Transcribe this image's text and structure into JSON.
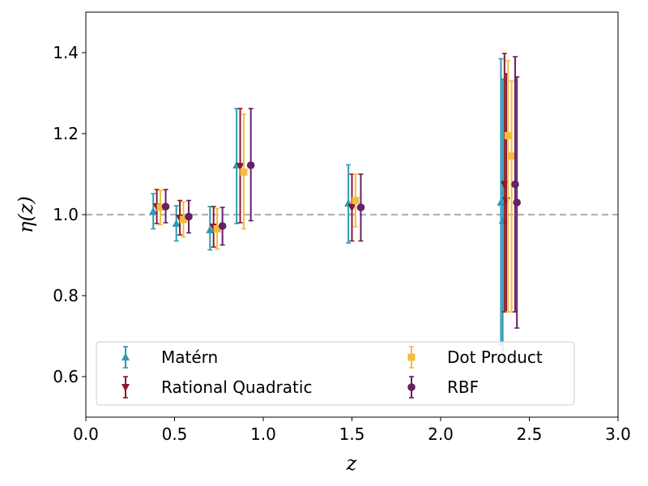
{
  "chart_data": {
    "type": "scatter",
    "title": "",
    "xlabel": "z",
    "ylabel": "η(z)",
    "xlim": [
      0.0,
      3.0
    ],
    "ylim": [
      0.5,
      1.5
    ],
    "xticks": [
      "0.0",
      "0.5",
      "1.0",
      "1.5",
      "2.0",
      "2.5",
      "3.0"
    ],
    "xtick_values": [
      0.0,
      0.5,
      1.0,
      1.5,
      2.0,
      2.5,
      3.0
    ],
    "yticks": [
      "0.6",
      "0.8",
      "1.0",
      "1.2",
      "1.4"
    ],
    "ytick_values": [
      0.6,
      0.8,
      1.0,
      1.2,
      1.4
    ],
    "reference_line": {
      "y": 1.0,
      "style": "dashed",
      "color": "#b3b3b3"
    },
    "legend_position": "lower-center",
    "series": [
      {
        "name": "Matérn",
        "color": "#2e9ab6",
        "marker": "triangle-up",
        "points": [
          {
            "x": 0.38,
            "y": 1.008,
            "lo": 0.965,
            "hi": 1.052
          },
          {
            "x": 0.51,
            "y": 0.978,
            "lo": 0.935,
            "hi": 1.022
          },
          {
            "x": 0.7,
            "y": 0.962,
            "lo": 0.913,
            "hi": 1.02
          },
          {
            "x": 0.85,
            "y": 1.122,
            "lo": 0.978,
            "hi": 1.262
          },
          {
            "x": 1.48,
            "y": 1.028,
            "lo": 0.93,
            "hi": 1.123
          },
          {
            "x": 2.34,
            "y": 1.03,
            "lo": 0.68,
            "hi": 1.385
          },
          {
            "x": 2.35,
            "y": 0.985,
            "lo": 0.64,
            "hi": 1.335
          }
        ]
      },
      {
        "name": "Rational Quadratic",
        "color": "#8b1a2b",
        "marker": "triangle-down",
        "points": [
          {
            "x": 0.4,
            "y": 1.02,
            "lo": 0.978,
            "hi": 1.062
          },
          {
            "x": 0.53,
            "y": 0.992,
            "lo": 0.95,
            "hi": 1.035
          },
          {
            "x": 0.72,
            "y": 0.97,
            "lo": 0.92,
            "hi": 1.02
          },
          {
            "x": 0.87,
            "y": 1.12,
            "lo": 0.98,
            "hi": 1.262
          },
          {
            "x": 1.5,
            "y": 1.018,
            "lo": 0.935,
            "hi": 1.1
          },
          {
            "x": 2.36,
            "y": 1.075,
            "lo": 0.76,
            "hi": 1.398
          },
          {
            "x": 2.37,
            "y": 1.035,
            "lo": 0.76,
            "hi": 1.348
          }
        ]
      },
      {
        "name": "Dot Product",
        "color": "#f2bd3d",
        "marker": "square",
        "points": [
          {
            "x": 0.42,
            "y": 1.018,
            "lo": 0.975,
            "hi": 1.06
          },
          {
            "x": 0.55,
            "y": 0.988,
            "lo": 0.945,
            "hi": 1.032
          },
          {
            "x": 0.74,
            "y": 0.965,
            "lo": 0.915,
            "hi": 1.015
          },
          {
            "x": 0.89,
            "y": 1.105,
            "lo": 0.965,
            "hi": 1.248
          },
          {
            "x": 1.52,
            "y": 1.035,
            "lo": 0.97,
            "hi": 1.1
          },
          {
            "x": 2.38,
            "y": 1.195,
            "lo": 0.76,
            "hi": 1.38
          },
          {
            "x": 2.4,
            "y": 1.145,
            "lo": 0.76,
            "hi": 1.33
          }
        ]
      },
      {
        "name": "RBF",
        "color": "#652067",
        "marker": "circle",
        "points": [
          {
            "x": 0.45,
            "y": 1.02,
            "lo": 0.98,
            "hi": 1.062
          },
          {
            "x": 0.58,
            "y": 0.995,
            "lo": 0.955,
            "hi": 1.035
          },
          {
            "x": 0.77,
            "y": 0.972,
            "lo": 0.925,
            "hi": 1.018
          },
          {
            "x": 0.93,
            "y": 1.122,
            "lo": 0.985,
            "hi": 1.262
          },
          {
            "x": 1.55,
            "y": 1.018,
            "lo": 0.935,
            "hi": 1.1
          },
          {
            "x": 2.42,
            "y": 1.075,
            "lo": 0.76,
            "hi": 1.39
          },
          {
            "x": 2.43,
            "y": 1.03,
            "lo": 0.72,
            "hi": 1.34
          }
        ]
      }
    ]
  }
}
